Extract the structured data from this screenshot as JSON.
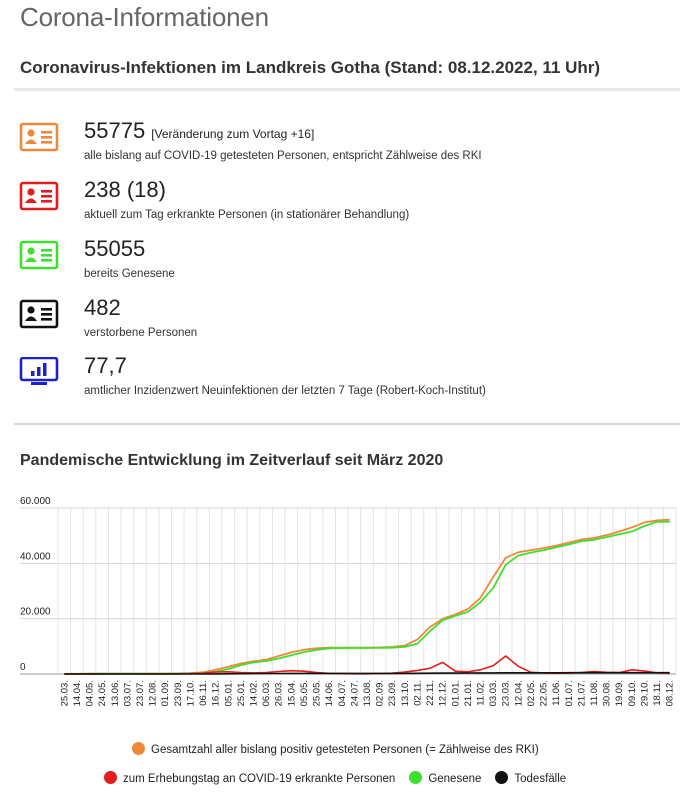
{
  "page_title": "Corona-Informationen",
  "subtitle": "Coronavirus-Infektionen im Landkreis Gotha (Stand: 08.12.2022, 11 Uhr)",
  "stats": [
    {
      "value": "55775",
      "change": "[Veränderung zum Vortag +16]",
      "desc": "alle bislang auf COVID-19 getesteten Personen, entspricht Zählweise des RKI",
      "color": "#f0883c",
      "icon": "id-card-icon"
    },
    {
      "value": "238 (18)",
      "desc": "aktuell zum Tag erkrankte Personen (in stationärer Behandlung)",
      "color": "#e51c1c",
      "icon": "id-card-icon"
    },
    {
      "value": "55055",
      "desc": "bereits Genesene",
      "color": "#3ee02e",
      "icon": "id-card-icon"
    },
    {
      "value": "482",
      "desc": "verstorbene Personen",
      "color": "#111111",
      "icon": "id-card-icon"
    },
    {
      "value": "77,7",
      "desc": "amtlicher Inzidenzwert Neuinfektionen der letzten 7 Tage (Robert-Koch-Institut)",
      "color": "#1a22c8",
      "icon": "monitor-chart-icon"
    }
  ],
  "chart_title": "Pandemische Entwicklung im Zeitverlauf seit März 2020",
  "legend": {
    "total": "Gesamtzahl aller bislang positiv getesteten Personen (= Zählweise des RKI)",
    "active": "zum Erhebungstag an COVID-19 erkrankte Personen",
    "recovered": "Genesene",
    "deaths": "Todesfälle"
  },
  "chart_data": {
    "type": "line",
    "y_ticks": [
      "60.000",
      "40.000",
      "20.000",
      "0"
    ],
    "ylim": [
      0,
      60000
    ],
    "grid": true,
    "legend_position": "bottom",
    "categories": [
      "25.03.",
      "14.04.",
      "04.05.",
      "24.05.",
      "13.06.",
      "03.07.",
      "23.07.",
      "12.08.",
      "01.09.",
      "23.09.",
      "17.10.",
      "06.11.",
      "16.12.",
      "05.01.",
      "25.01.",
      "14.02.",
      "06.03.",
      "26.03.",
      "15.04.",
      "05.05.",
      "25.05.",
      "14.06.",
      "04.07.",
      "24.07.",
      "13.08.",
      "02.09.",
      "23.09.",
      "13.10.",
      "02.11.",
      "22.11.",
      "12.12.",
      "01.01.",
      "21.01.",
      "11.02.",
      "03.03.",
      "23.03.",
      "12.04.",
      "02.05.",
      "22.05.",
      "11.06.",
      "01.07.",
      "21.07.",
      "11.08.",
      "30.08.",
      "19.09.",
      "09.10.",
      "29.10.",
      "18.11.",
      "08.12."
    ],
    "series": [
      {
        "name": "Gesamtzahl aller bislang positiv getesteten Personen (= Zählweise des RKI)",
        "color": "#f0883c",
        "values": [
          30,
          80,
          110,
          130,
          140,
          150,
          160,
          170,
          180,
          200,
          300,
          600,
          1500,
          2600,
          3800,
          4600,
          5200,
          6500,
          7800,
          8800,
          9300,
          9500,
          9500,
          9500,
          9500,
          9600,
          9800,
          10300,
          12500,
          17000,
          20000,
          21500,
          23500,
          27500,
          35000,
          42000,
          44000,
          44800,
          45500,
          46400,
          47500,
          48600,
          49200,
          50200,
          51500,
          53000,
          54800,
          55500,
          55775
        ]
      },
      {
        "name": "zum Erhebungstag an COVID-19 erkrankte Personen",
        "color": "#e51c1c",
        "values": [
          20,
          40,
          20,
          10,
          10,
          10,
          10,
          20,
          40,
          80,
          150,
          300,
          700,
          800,
          500,
          400,
          500,
          900,
          1200,
          1000,
          500,
          200,
          100,
          80,
          80,
          150,
          300,
          700,
          1300,
          2100,
          4200,
          1000,
          800,
          1500,
          3000,
          6500,
          2800,
          600,
          400,
          300,
          300,
          500,
          900,
          600,
          500,
          1500,
          1100,
          400,
          238
        ]
      },
      {
        "name": "Genesene",
        "color": "#3ee02e",
        "values": [
          10,
          40,
          90,
          120,
          130,
          140,
          150,
          150,
          160,
          170,
          200,
          300,
          800,
          1800,
          3200,
          4200,
          4700,
          5600,
          6800,
          7900,
          8700,
          9300,
          9400,
          9400,
          9400,
          9450,
          9500,
          9800,
          11000,
          15500,
          19500,
          21000,
          22500,
          26000,
          31000,
          39500,
          42800,
          43900,
          44700,
          45800,
          46800,
          48000,
          48500,
          49500,
          50500,
          51500,
          53500,
          55000,
          55055
        ]
      },
      {
        "name": "Todesfälle",
        "color": "#111111",
        "values": [
          0,
          2,
          3,
          3,
          3,
          3,
          3,
          3,
          3,
          3,
          5,
          10,
          40,
          80,
          120,
          160,
          180,
          190,
          200,
          210,
          215,
          220,
          220,
          220,
          220,
          222,
          225,
          230,
          250,
          280,
          310,
          340,
          360,
          380,
          400,
          420,
          430,
          440,
          445,
          450,
          455,
          460,
          462,
          465,
          468,
          470,
          475,
          480,
          482
        ]
      }
    ]
  }
}
